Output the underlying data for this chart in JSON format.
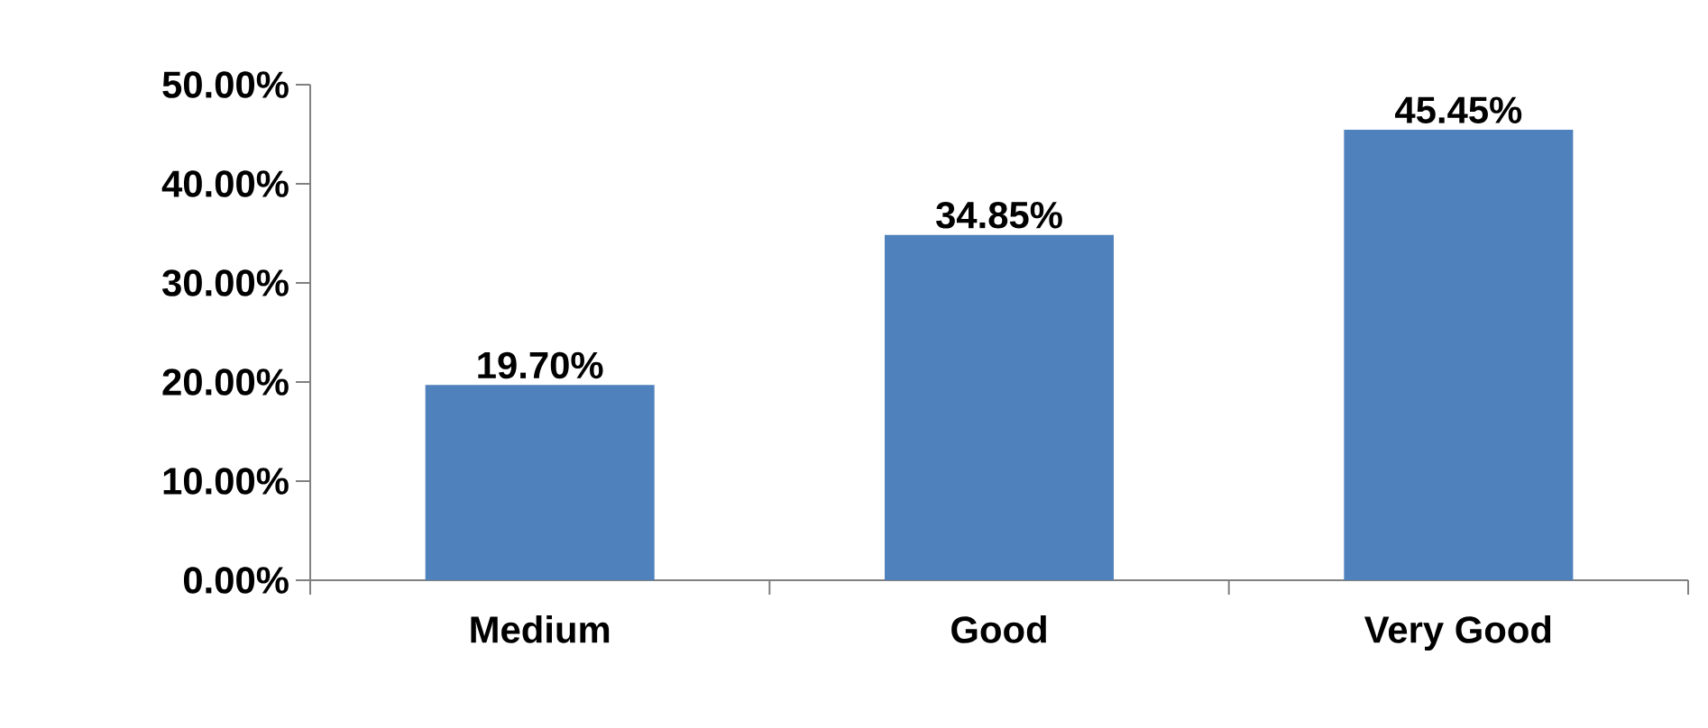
{
  "chart_data": {
    "type": "bar",
    "categories": [
      "Medium",
      "Good",
      "Very Good"
    ],
    "values": [
      19.7,
      34.85,
      45.45
    ],
    "value_labels": [
      "19.70%",
      "34.85%",
      "45.45%"
    ],
    "color": "#4f81bd",
    "ylim": [
      0,
      50
    ],
    "yticks": [
      {
        "value": 0,
        "label": "0.00%"
      },
      {
        "value": 10,
        "label": "10.00%"
      },
      {
        "value": 20,
        "label": "20.00%"
      },
      {
        "value": 30,
        "label": "30.00%"
      },
      {
        "value": 40,
        "label": "40.00%"
      },
      {
        "value": 50,
        "label": "50.00%"
      }
    ],
    "grid": false
  }
}
